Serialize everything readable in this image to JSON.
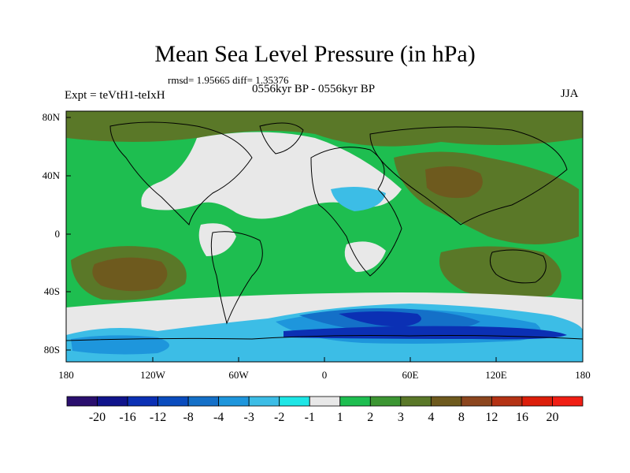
{
  "title": "Mean Sea Level Pressure (in hPa)",
  "stats": "rmsd= 1.95665 diff= 1.35376",
  "subtitle": "0556kyr BP - 0556kyr BP",
  "experiment": "Expt = teVtH1-teIxH",
  "season": "JJA",
  "latitude_labels": [
    "80N",
    "40N",
    "0",
    "40S",
    "80S"
  ],
  "longitude_labels": [
    "180",
    "120W",
    "60W",
    "0",
    "60E",
    "120E",
    "180"
  ],
  "colorbar": {
    "labels": [
      "-20",
      "-16",
      "-12",
      "-8",
      "-4",
      "-3",
      "-2",
      "-1",
      "1",
      "2",
      "3",
      "4",
      "8",
      "12",
      "16",
      "20"
    ],
    "colors": [
      "#2a0f6e",
      "#10148c",
      "#0b30b4",
      "#0a4cbe",
      "#1470c8",
      "#1e96dc",
      "#3cbde6",
      "#1ee6e6",
      "#e8e8e8",
      "#1ebe50",
      "#3c9632",
      "#5a7828",
      "#6e5a1e",
      "#8c461e",
      "#b43214",
      "#dc1e0a",
      "#f01e14"
    ]
  },
  "map_colors": {
    "positive_1_2": "#1ebe50",
    "positive_2_3": "#3c9632",
    "positive_3_4": "#5a7828",
    "positive_4_8": "#6e5a1e",
    "near_zero": "#e8e8e8",
    "negative_1_2": "#1ee6e6",
    "negative_2_3": "#3cbde6",
    "negative_3_4": "#1e96dc",
    "negative_4_8": "#1470c8",
    "negative_8_12": "#0a4cbe",
    "negative_12_16": "#0b30b4"
  }
}
